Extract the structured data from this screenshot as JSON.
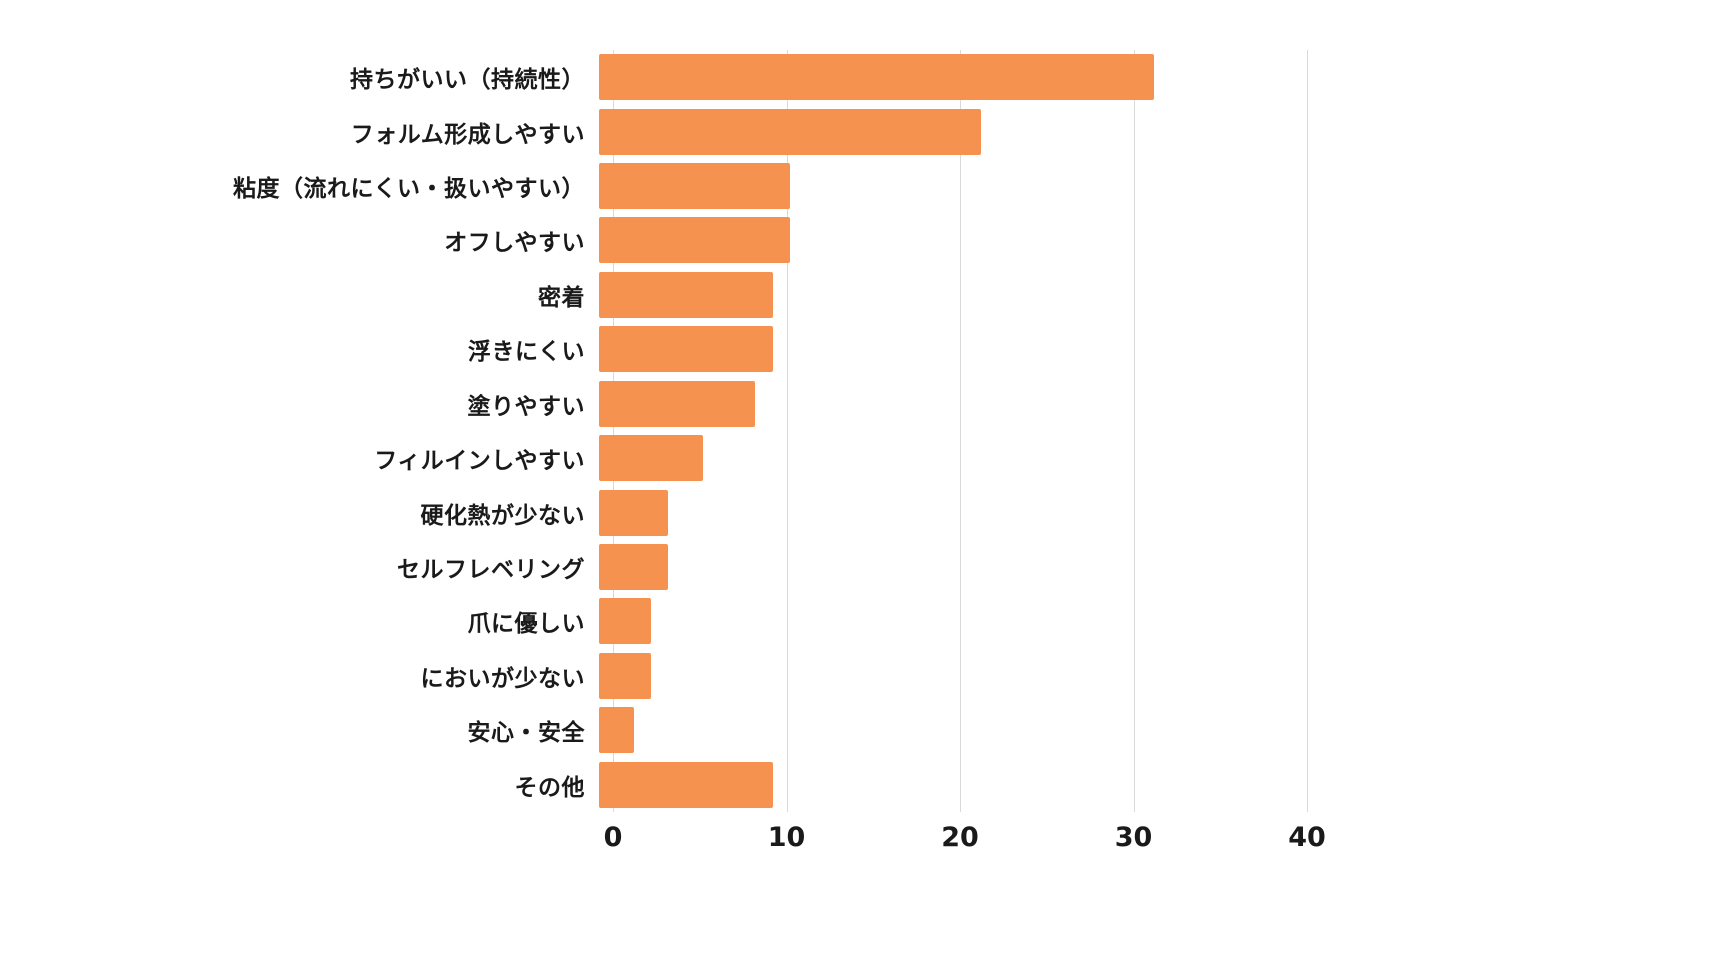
{
  "colors": {
    "bar": "#f5924f",
    "gridline": "#d9d9d9",
    "text": "#1a1a1a",
    "background": "#ffffff"
  },
  "chart_data": {
    "type": "bar",
    "orientation": "horizontal",
    "title": "",
    "xlabel": "",
    "ylabel": "",
    "categories": [
      "持ちがいい（持続性）",
      "フォルム形成しやすい",
      "粘度（流れにくい・扱いやすい）",
      "オフしやすい",
      "密着",
      "浮きにくい",
      "塗りやすい",
      "フィルインしやすい",
      "硬化熱が少ない",
      "セルフレベリング",
      "爪に優しい",
      "においが少ない",
      "安心・安全",
      "その他"
    ],
    "values": [
      32,
      22,
      11,
      11,
      10,
      10,
      9,
      6,
      4,
      4,
      3,
      3,
      2,
      10
    ],
    "xlim": [
      0,
      40
    ],
    "x_ticks": [
      0,
      10,
      20,
      30,
      40
    ],
    "grid": true,
    "legend": "none"
  }
}
